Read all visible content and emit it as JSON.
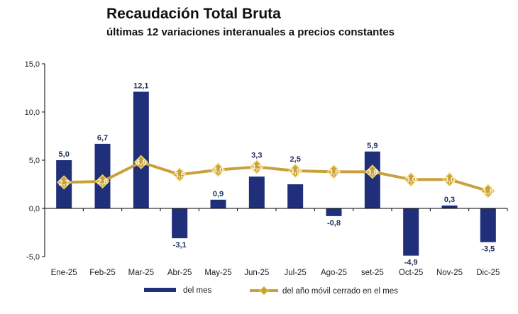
{
  "chart_data": {
    "type": "bar+line",
    "title": "Recaudación Total Bruta",
    "subtitle": "últimas 12 variaciones interanuales a precios constantes",
    "categories": [
      "Ene-25",
      "Feb-25",
      "Mar-25",
      "Abr-25",
      "May-25",
      "Jun-25",
      "Jul-25",
      "Ago-25",
      "set-25",
      "Oct-25",
      "Nov-25",
      "Dic-25"
    ],
    "series": [
      {
        "name": "del mes",
        "type": "bar",
        "color": "#1f2f7a",
        "values": [
          5.0,
          6.7,
          12.1,
          -3.1,
          0.9,
          3.3,
          2.5,
          -0.8,
          5.9,
          -4.9,
          0.3,
          -3.5
        ]
      },
      {
        "name": "del año móvil cerrado en el mes",
        "type": "line",
        "color": "#c9a13c",
        "marker": "diamond",
        "values": [
          2.7,
          2.8,
          4.8,
          3.5,
          4.0,
          4.3,
          3.9,
          3.8,
          3.8,
          3.0,
          3.0,
          1.8
        ]
      }
    ],
    "ylim": [
      -5,
      15
    ],
    "yticks": [
      -5,
      0,
      5,
      10,
      15
    ],
    "ytick_labels": [
      "-5,0",
      "0,0",
      "5,0",
      "10,0",
      "15,0"
    ],
    "grid": false,
    "legend": "bottom"
  }
}
